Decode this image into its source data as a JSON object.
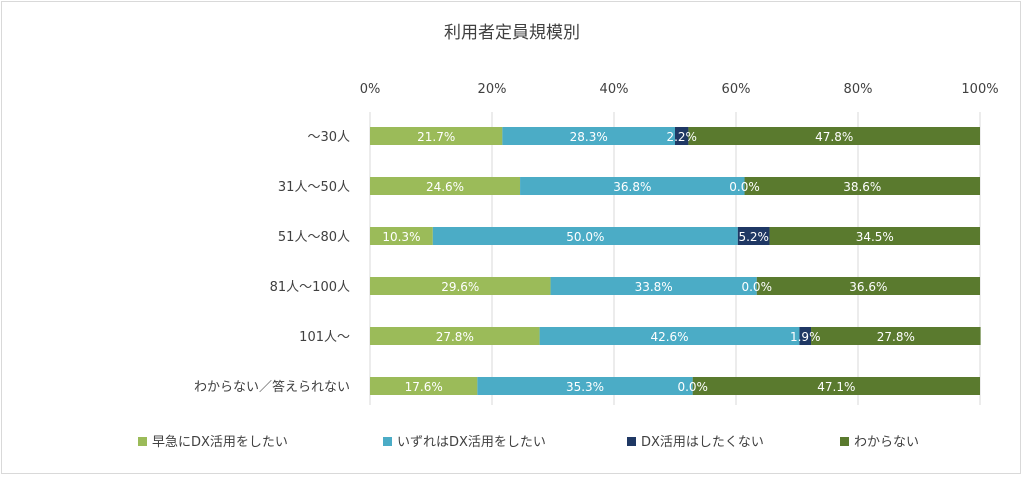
{
  "chart_data": {
    "type": "bar",
    "orientation": "horizontal",
    "stacked": "percent",
    "title": "利用者定員規模別",
    "categories": [
      "～30人",
      "31人～50人",
      "51人～80人",
      "81人～100人",
      "101人～",
      "わからない／答えられない"
    ],
    "xlim": [
      0,
      100
    ],
    "x_ticks": [
      "0%",
      "20%",
      "40%",
      "60%",
      "80%",
      "100%"
    ],
    "grid": "vertical",
    "legend_position": "bottom",
    "series": [
      {
        "name": "早急にDX活用をしたい",
        "color": "#9bbb59",
        "values": [
          21.7,
          24.6,
          10.3,
          29.6,
          27.8,
          17.6
        ],
        "labels": [
          "21.7%",
          "24.6%",
          "10.3%",
          "29.6%",
          "27.8%",
          "17.6%"
        ]
      },
      {
        "name": "いずれはDX活用をしたい",
        "color": "#4bacc6",
        "values": [
          28.3,
          36.8,
          50.0,
          33.8,
          42.6,
          35.3
        ],
        "labels": [
          "28.3%",
          "36.8%",
          "50.0%",
          "33.8%",
          "42.6%",
          "35.3%"
        ]
      },
      {
        "name": "DX活用はしたくない",
        "color": "#1f3864",
        "values": [
          2.2,
          0.0,
          5.2,
          0.0,
          1.9,
          0.0
        ],
        "labels": [
          "2.2%",
          "0.0%",
          "5.2%",
          "0.0%",
          "1.9%",
          "0.0%"
        ]
      },
      {
        "name": "わからない",
        "color": "#5a7a2e",
        "values": [
          47.8,
          38.6,
          34.5,
          36.6,
          27.8,
          47.1
        ],
        "labels": [
          "47.8%",
          "38.6%",
          "34.5%",
          "36.6%",
          "27.8%",
          "47.1%"
        ]
      }
    ]
  }
}
